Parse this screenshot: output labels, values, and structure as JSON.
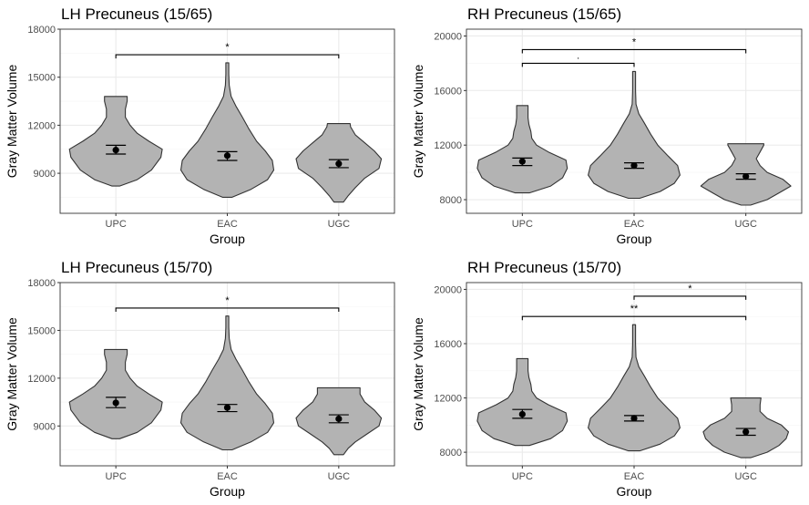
{
  "chart_data": [
    {
      "type": "violin",
      "title": "LH Precuneus (15/65)",
      "xlabel": "Group",
      "ylabel": "Gray Matter Volume",
      "categories": [
        "UPC",
        "EAC",
        "UGC"
      ],
      "ylim": [
        6500,
        18000
      ],
      "yticks": [
        9000,
        12000,
        15000,
        18000
      ],
      "grid": true,
      "groups": [
        {
          "name": "UPC",
          "mean": 10450,
          "ci": [
            10200,
            10750
          ],
          "min": 8200,
          "max": 13800,
          "profile": [
            [
              8200,
              0.08
            ],
            [
              8600,
              0.45
            ],
            [
              9200,
              0.75
            ],
            [
              10000,
              0.95
            ],
            [
              10500,
              0.98
            ],
            [
              11000,
              0.7
            ],
            [
              11500,
              0.45
            ],
            [
              12000,
              0.3
            ],
            [
              12500,
              0.2
            ],
            [
              13000,
              0.2
            ],
            [
              13500,
              0.24
            ],
            [
              13800,
              0.24
            ]
          ]
        },
        {
          "name": "EAC",
          "mean": 10100,
          "ci": [
            9800,
            10350
          ],
          "min": 7500,
          "max": 15900,
          "profile": [
            [
              7500,
              0.1
            ],
            [
              8000,
              0.5
            ],
            [
              8600,
              0.85
            ],
            [
              9200,
              0.98
            ],
            [
              9800,
              0.95
            ],
            [
              10400,
              0.8
            ],
            [
              11000,
              0.62
            ],
            [
              11800,
              0.45
            ],
            [
              12500,
              0.32
            ],
            [
              13200,
              0.18
            ],
            [
              13800,
              0.08
            ],
            [
              14500,
              0.04
            ],
            [
              15200,
              0.03
            ],
            [
              15900,
              0.03
            ]
          ]
        },
        {
          "name": "UGC",
          "mean": 9600,
          "ci": [
            9350,
            9850
          ],
          "min": 7200,
          "max": 12100,
          "profile": [
            [
              7200,
              0.1
            ],
            [
              7600,
              0.2
            ],
            [
              8100,
              0.35
            ],
            [
              8700,
              0.55
            ],
            [
              9300,
              0.85
            ],
            [
              9900,
              0.9
            ],
            [
              10400,
              0.75
            ],
            [
              10900,
              0.55
            ],
            [
              11400,
              0.35
            ],
            [
              11900,
              0.25
            ],
            [
              12100,
              0.24
            ]
          ]
        }
      ],
      "comparisons": [
        {
          "from": "UPC",
          "to": "UGC",
          "y": 16400,
          "label": "*"
        }
      ]
    },
    {
      "type": "violin",
      "title": "RH Precuneus (15/65)",
      "xlabel": "Group",
      "ylabel": "Gray Matter Volume",
      "categories": [
        "UPC",
        "EAC",
        "UGC"
      ],
      "ylim": [
        7000,
        20500
      ],
      "yticks": [
        8000,
        12000,
        16000,
        20000
      ],
      "grid": true,
      "groups": [
        {
          "name": "UPC",
          "mean": 10800,
          "ci": [
            10500,
            11050
          ],
          "min": 8500,
          "max": 14900,
          "profile": [
            [
              8500,
              0.15
            ],
            [
              9000,
              0.6
            ],
            [
              9600,
              0.85
            ],
            [
              10300,
              0.95
            ],
            [
              10900,
              0.92
            ],
            [
              11500,
              0.55
            ],
            [
              12000,
              0.3
            ],
            [
              12500,
              0.2
            ],
            [
              13000,
              0.18
            ],
            [
              13500,
              0.14
            ],
            [
              14000,
              0.12
            ],
            [
              14500,
              0.12
            ],
            [
              14900,
              0.12
            ]
          ]
        },
        {
          "name": "EAC",
          "mean": 10500,
          "ci": [
            10300,
            10700
          ],
          "min": 8100,
          "max": 17400,
          "profile": [
            [
              8100,
              0.12
            ],
            [
              8600,
              0.55
            ],
            [
              9200,
              0.85
            ],
            [
              9800,
              0.97
            ],
            [
              10500,
              0.92
            ],
            [
              11200,
              0.72
            ],
            [
              12000,
              0.5
            ],
            [
              12800,
              0.35
            ],
            [
              13600,
              0.22
            ],
            [
              14300,
              0.1
            ],
            [
              15000,
              0.04
            ],
            [
              16000,
              0.03
            ],
            [
              17400,
              0.03
            ]
          ]
        },
        {
          "name": "UGC",
          "mean": 9700,
          "ci": [
            9500,
            9900
          ],
          "min": 7600,
          "max": 12100,
          "profile": [
            [
              7600,
              0.1
            ],
            [
              8000,
              0.45
            ],
            [
              8500,
              0.7
            ],
            [
              9000,
              0.95
            ],
            [
              9500,
              0.78
            ],
            [
              10000,
              0.45
            ],
            [
              10500,
              0.3
            ],
            [
              11000,
              0.22
            ],
            [
              11500,
              0.3
            ],
            [
              12000,
              0.38
            ],
            [
              12100,
              0.38
            ]
          ]
        }
      ],
      "comparisons": [
        {
          "from": "UPC",
          "to": "UGC",
          "y": 19000,
          "label": "*"
        },
        {
          "from": "UPC",
          "to": "EAC",
          "y": 18000,
          "label": "."
        }
      ]
    },
    {
      "type": "violin",
      "title": "LH Precuneus (15/70)",
      "xlabel": "Group",
      "ylabel": "Gray Matter Volume",
      "categories": [
        "UPC",
        "EAC",
        "UGC"
      ],
      "ylim": [
        6500,
        18000
      ],
      "yticks": [
        9000,
        12000,
        15000,
        18000
      ],
      "grid": true,
      "groups": [
        {
          "name": "UPC",
          "mean": 10450,
          "ci": [
            10150,
            10800
          ],
          "min": 8200,
          "max": 13800,
          "profile": [
            [
              8200,
              0.08
            ],
            [
              8600,
              0.45
            ],
            [
              9200,
              0.75
            ],
            [
              10000,
              0.95
            ],
            [
              10500,
              0.98
            ],
            [
              11000,
              0.7
            ],
            [
              11500,
              0.45
            ],
            [
              12000,
              0.3
            ],
            [
              12500,
              0.2
            ],
            [
              13000,
              0.2
            ],
            [
              13500,
              0.24
            ],
            [
              13800,
              0.24
            ]
          ]
        },
        {
          "name": "EAC",
          "mean": 10150,
          "ci": [
            9900,
            10350
          ],
          "min": 7500,
          "max": 15900,
          "profile": [
            [
              7500,
              0.1
            ],
            [
              8000,
              0.5
            ],
            [
              8600,
              0.85
            ],
            [
              9200,
              0.98
            ],
            [
              9800,
              0.95
            ],
            [
              10400,
              0.8
            ],
            [
              11000,
              0.62
            ],
            [
              11800,
              0.45
            ],
            [
              12500,
              0.32
            ],
            [
              13200,
              0.18
            ],
            [
              13800,
              0.08
            ],
            [
              14500,
              0.04
            ],
            [
              15200,
              0.03
            ],
            [
              15900,
              0.03
            ]
          ]
        },
        {
          "name": "UGC",
          "mean": 9450,
          "ci": [
            9200,
            9700
          ],
          "min": 7200,
          "max": 11400,
          "profile": [
            [
              7200,
              0.1
            ],
            [
              7600,
              0.2
            ],
            [
              8000,
              0.35
            ],
            [
              8500,
              0.6
            ],
            [
              9000,
              0.85
            ],
            [
              9500,
              0.9
            ],
            [
              10000,
              0.75
            ],
            [
              10500,
              0.55
            ],
            [
              11000,
              0.45
            ],
            [
              11400,
              0.45
            ]
          ]
        }
      ],
      "comparisons": [
        {
          "from": "UPC",
          "to": "UGC",
          "y": 16400,
          "label": "*"
        }
      ]
    },
    {
      "type": "violin",
      "title": "RH Precuneus (15/70)",
      "xlabel": "Group",
      "ylabel": "Gray Matter Volume",
      "categories": [
        "UPC",
        "EAC",
        "UGC"
      ],
      "ylim": [
        7000,
        20500
      ],
      "yticks": [
        8000,
        12000,
        16000,
        20000
      ],
      "grid": true,
      "groups": [
        {
          "name": "UPC",
          "mean": 10800,
          "ci": [
            10500,
            11150
          ],
          "min": 8500,
          "max": 14900,
          "profile": [
            [
              8500,
              0.15
            ],
            [
              9000,
              0.6
            ],
            [
              9600,
              0.85
            ],
            [
              10300,
              0.95
            ],
            [
              10900,
              0.92
            ],
            [
              11500,
              0.55
            ],
            [
              12000,
              0.3
            ],
            [
              12500,
              0.2
            ],
            [
              13000,
              0.18
            ],
            [
              13500,
              0.14
            ],
            [
              14000,
              0.12
            ],
            [
              14500,
              0.12
            ],
            [
              14900,
              0.12
            ]
          ]
        },
        {
          "name": "EAC",
          "mean": 10500,
          "ci": [
            10300,
            10700
          ],
          "min": 8100,
          "max": 17400,
          "profile": [
            [
              8100,
              0.12
            ],
            [
              8600,
              0.55
            ],
            [
              9200,
              0.85
            ],
            [
              9800,
              0.97
            ],
            [
              10500,
              0.92
            ],
            [
              11200,
              0.72
            ],
            [
              12000,
              0.5
            ],
            [
              12800,
              0.35
            ],
            [
              13600,
              0.22
            ],
            [
              14300,
              0.1
            ],
            [
              15000,
              0.04
            ],
            [
              16000,
              0.03
            ],
            [
              17400,
              0.03
            ]
          ]
        },
        {
          "name": "UGC",
          "mean": 9500,
          "ci": [
            9250,
            9750
          ],
          "min": 7600,
          "max": 12000,
          "profile": [
            [
              7600,
              0.1
            ],
            [
              8000,
              0.45
            ],
            [
              8500,
              0.7
            ],
            [
              9000,
              0.85
            ],
            [
              9500,
              0.9
            ],
            [
              10000,
              0.75
            ],
            [
              10500,
              0.45
            ],
            [
              11000,
              0.3
            ],
            [
              11500,
              0.3
            ],
            [
              12000,
              0.32
            ]
          ]
        }
      ],
      "comparisons": [
        {
          "from": "EAC",
          "to": "UGC",
          "y": 19500,
          "label": "*"
        },
        {
          "from": "UPC",
          "to": "UGC",
          "y": 18000,
          "label": "**"
        }
      ]
    }
  ],
  "colors": {
    "violin_fill": "#b3b3b3",
    "violin_stroke": "#333333",
    "grid_major": "#ebebeb",
    "grid_minor": "#f5f5f5",
    "panel_border": "#333333",
    "point": "#000000"
  }
}
